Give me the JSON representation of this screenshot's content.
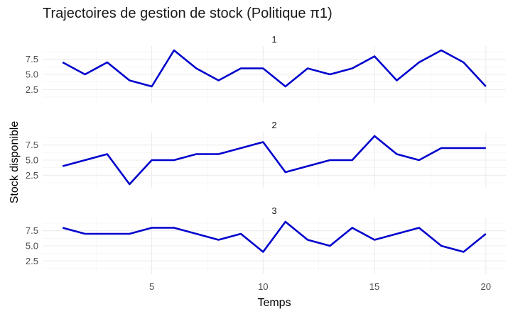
{
  "chart_data": {
    "type": "line",
    "title": "Trajectoires de gestion de stock (Politique π1)",
    "xlabel": "Temps",
    "ylabel": "Stock disponible",
    "x": [
      1,
      2,
      3,
      4,
      5,
      6,
      7,
      8,
      9,
      10,
      11,
      12,
      13,
      14,
      15,
      16,
      17,
      18,
      19,
      20
    ],
    "x_ticks": [
      5,
      10,
      15,
      20
    ],
    "x_tick_labels": [
      "5",
      "10",
      "15",
      "20"
    ],
    "xlim": [
      0.1,
      20.9
    ],
    "y_ticks": [
      2.5,
      5.0,
      7.5
    ],
    "y_tick_labels": [
      "2.5",
      "5.0",
      "7.5"
    ],
    "ylim": [
      0.3,
      9.7
    ],
    "grid": true,
    "line_color": "#0000CD",
    "facets": [
      {
        "label": "1",
        "values": [
          7,
          5,
          7,
          4,
          3,
          9,
          6,
          4,
          6,
          6,
          3,
          6,
          5,
          6,
          8,
          4,
          7,
          9,
          7,
          3
        ]
      },
      {
        "label": "2",
        "values": [
          4,
          5,
          6,
          1,
          5,
          5,
          6,
          6,
          7,
          8,
          3,
          4,
          5,
          5,
          9,
          6,
          5,
          7,
          7,
          7
        ]
      },
      {
        "label": "3",
        "values": [
          8,
          7,
          7,
          7,
          8,
          8,
          7,
          6,
          7,
          4,
          9,
          6,
          5,
          8,
          6,
          7,
          8,
          5,
          4,
          7
        ]
      }
    ]
  }
}
